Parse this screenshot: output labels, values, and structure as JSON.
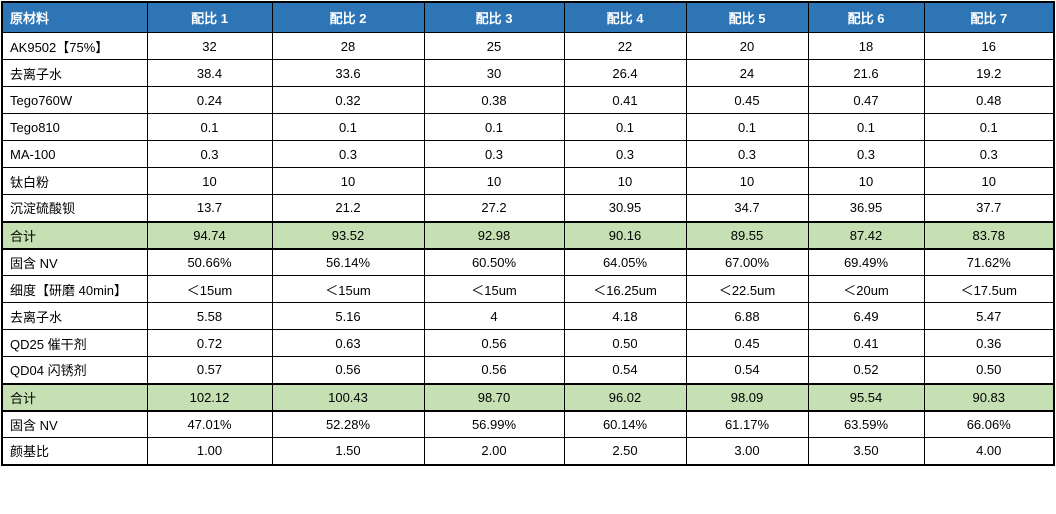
{
  "table": {
    "colors": {
      "header_bg": "#2E75B6",
      "header_text": "#FFFFFF",
      "total_row_bg": "#C6E0B4",
      "border": "#000000"
    },
    "header": {
      "corner": "原材料",
      "columns": [
        "配比 1",
        "配比 2",
        "配比 3",
        "配比 4",
        "配比 5",
        "配比 6",
        "配比 7"
      ]
    },
    "rows": [
      {
        "type": "normal",
        "label": "AK9502【75%】",
        "values": [
          "32",
          "28",
          "25",
          "22",
          "20",
          "18",
          "16"
        ]
      },
      {
        "type": "normal",
        "label": "去离子水",
        "values": [
          "38.4",
          "33.6",
          "30",
          "26.4",
          "24",
          "21.6",
          "19.2"
        ]
      },
      {
        "type": "normal",
        "label": "Tego760W",
        "values": [
          "0.24",
          "0.32",
          "0.38",
          "0.41",
          "0.45",
          "0.47",
          "0.48"
        ]
      },
      {
        "type": "normal",
        "label": "Tego810",
        "values": [
          "0.1",
          "0.1",
          "0.1",
          "0.1",
          "0.1",
          "0.1",
          "0.1"
        ]
      },
      {
        "type": "normal",
        "label": "MA-100",
        "values": [
          "0.3",
          "0.3",
          "0.3",
          "0.3",
          "0.3",
          "0.3",
          "0.3"
        ]
      },
      {
        "type": "normal",
        "label": "钛白粉",
        "values": [
          "10",
          "10",
          "10",
          "10",
          "10",
          "10",
          "10"
        ]
      },
      {
        "type": "normal",
        "label": "沉淀硫酸钡",
        "values": [
          "13.7",
          "21.2",
          "27.2",
          "30.95",
          "34.7",
          "36.95",
          "37.7"
        ]
      },
      {
        "type": "total",
        "label": "合计",
        "values": [
          "94.74",
          "93.52",
          "92.98",
          "90.16",
          "89.55",
          "87.42",
          "83.78"
        ]
      },
      {
        "type": "normal",
        "label": "固含 NV",
        "values": [
          "50.66%",
          "56.14%",
          "60.50%",
          "64.05%",
          "67.00%",
          "69.49%",
          "71.62%"
        ]
      },
      {
        "type": "normal",
        "label": "细度【研磨 40min】",
        "values": [
          "＜15um",
          "＜15um",
          "＜15um",
          "＜16.25um",
          "＜22.5um",
          "＜20um",
          "＜17.5um"
        ]
      },
      {
        "type": "normal",
        "label": "去离子水",
        "values": [
          "5.58",
          "5.16",
          "4",
          "4.18",
          "6.88",
          "6.49",
          "5.47"
        ]
      },
      {
        "type": "normal",
        "label": "QD25 催干剂",
        "values": [
          "0.72",
          "0.63",
          "0.56",
          "0.50",
          "0.45",
          "0.41",
          "0.36"
        ]
      },
      {
        "type": "normal",
        "label": "QD04 闪锈剂",
        "values": [
          "0.57",
          "0.56",
          "0.56",
          "0.54",
          "0.54",
          "0.52",
          "0.50"
        ]
      },
      {
        "type": "total",
        "label": "合计",
        "values": [
          "102.12",
          "100.43",
          "98.70",
          "96.02",
          "98.09",
          "95.54",
          "90.83"
        ]
      },
      {
        "type": "normal",
        "label": "固含 NV",
        "values": [
          "47.01%",
          "52.28%",
          "56.99%",
          "60.14%",
          "61.17%",
          "63.59%",
          "66.06%"
        ]
      },
      {
        "type": "normal",
        "label": "颜基比",
        "values": [
          "1.00",
          "1.50",
          "2.00",
          "2.50",
          "3.00",
          "3.50",
          "4.00"
        ]
      }
    ]
  }
}
